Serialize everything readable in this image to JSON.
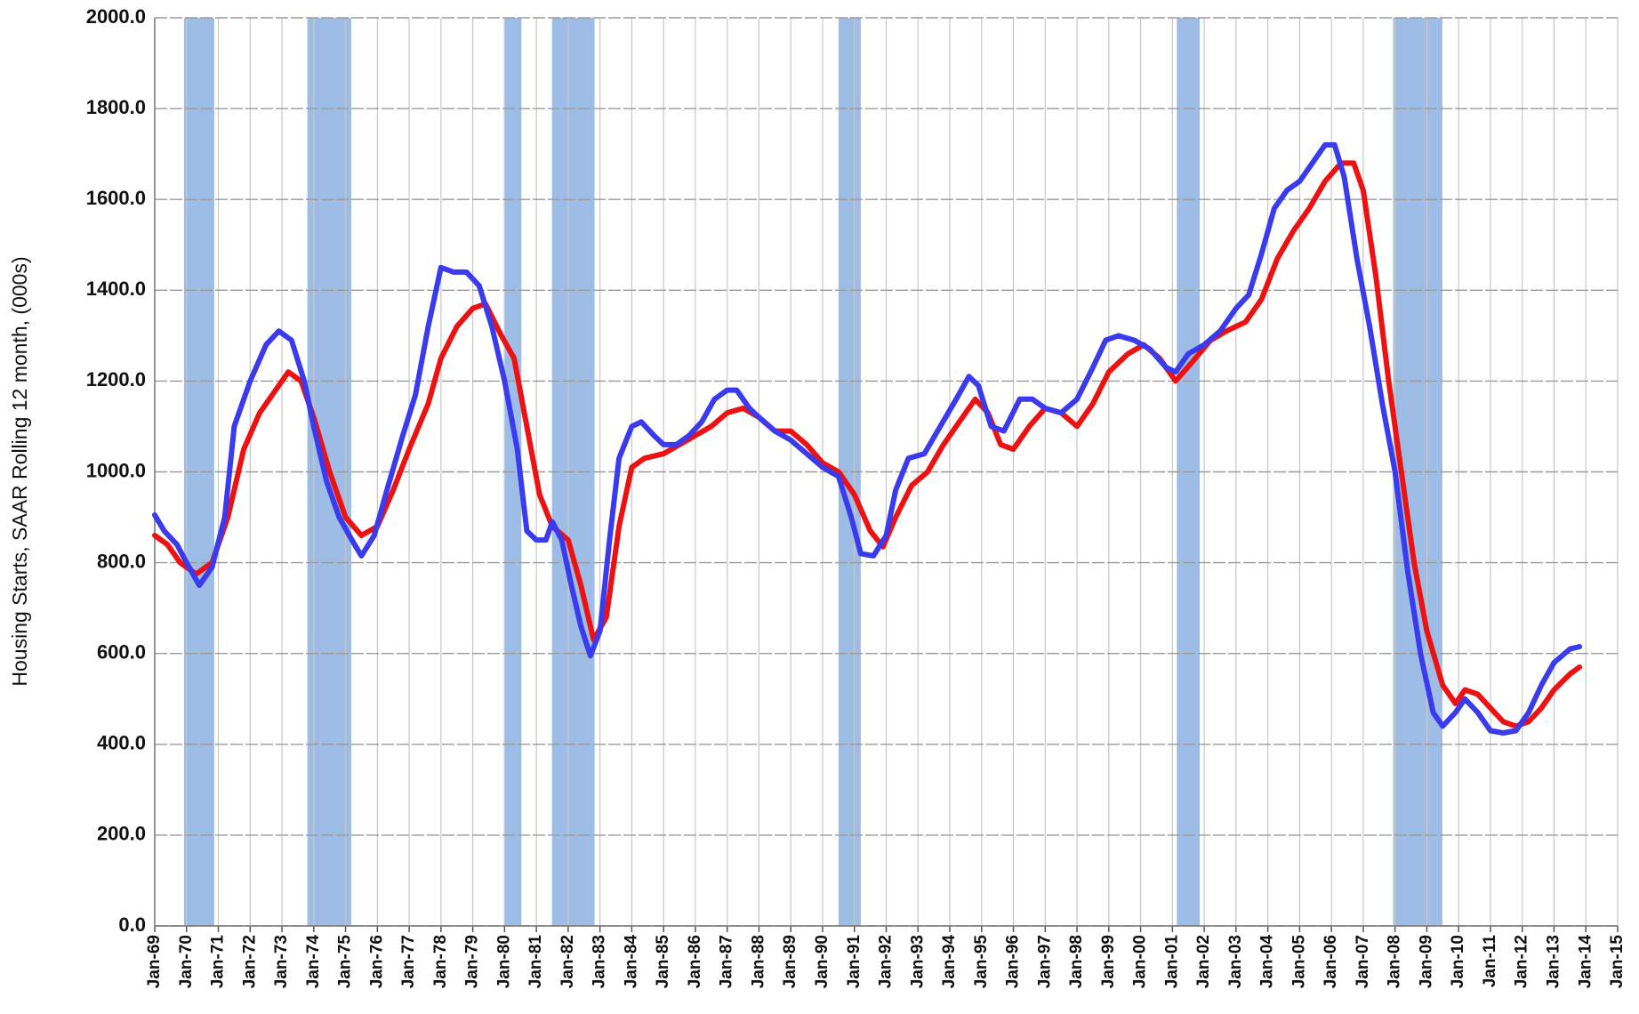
{
  "chart_data": {
    "type": "line",
    "y_label": "Housing Starts, SAAR Rolling 12 month, (000s)",
    "xlim": [
      1969,
      2015
    ],
    "xticks": [
      {
        "value": 1969,
        "label": "Jan-69"
      },
      {
        "value": 1970,
        "label": "Jan-70"
      },
      {
        "value": 1971,
        "label": "Jan-71"
      },
      {
        "value": 1972,
        "label": "Jan-72"
      },
      {
        "value": 1973,
        "label": "Jan-73"
      },
      {
        "value": 1974,
        "label": "Jan-74"
      },
      {
        "value": 1975,
        "label": "Jan-75"
      },
      {
        "value": 1976,
        "label": "Jan-76"
      },
      {
        "value": 1977,
        "label": "Jan-77"
      },
      {
        "value": 1978,
        "label": "Jan-78"
      },
      {
        "value": 1979,
        "label": "Jan-79"
      },
      {
        "value": 1980,
        "label": "Jan-80"
      },
      {
        "value": 1981,
        "label": "Jan-81"
      },
      {
        "value": 1982,
        "label": "Jan-82"
      },
      {
        "value": 1983,
        "label": "Jan-83"
      },
      {
        "value": 1984,
        "label": "Jan-84"
      },
      {
        "value": 1985,
        "label": "Jan-85"
      },
      {
        "value": 1986,
        "label": "Jan-86"
      },
      {
        "value": 1987,
        "label": "Jan-87"
      },
      {
        "value": 1988,
        "label": "Jan-88"
      },
      {
        "value": 1989,
        "label": "Jan-89"
      },
      {
        "value": 1990,
        "label": "Jan-90"
      },
      {
        "value": 1991,
        "label": "Jan-91"
      },
      {
        "value": 1992,
        "label": "Jan-92"
      },
      {
        "value": 1993,
        "label": "Jan-93"
      },
      {
        "value": 1994,
        "label": "Jan-94"
      },
      {
        "value": 1995,
        "label": "Jan-95"
      },
      {
        "value": 1996,
        "label": "Jan-96"
      },
      {
        "value": 1997,
        "label": "Jan-97"
      },
      {
        "value": 1998,
        "label": "Jan-98"
      },
      {
        "value": 1999,
        "label": "Jan-99"
      },
      {
        "value": 2000,
        "label": "Jan-00"
      },
      {
        "value": 2001,
        "label": "Jan-01"
      },
      {
        "value": 2002,
        "label": "Jan-02"
      },
      {
        "value": 2003,
        "label": "Jan-03"
      },
      {
        "value": 2004,
        "label": "Jan-04"
      },
      {
        "value": 2005,
        "label": "Jan-05"
      },
      {
        "value": 2006,
        "label": "Jan-06"
      },
      {
        "value": 2007,
        "label": "Jan-07"
      },
      {
        "value": 2008,
        "label": "Jan-08"
      },
      {
        "value": 2009,
        "label": "Jan-09"
      },
      {
        "value": 2010,
        "label": "Jan-10"
      },
      {
        "value": 2011,
        "label": "Jan-11"
      },
      {
        "value": 2012,
        "label": "Jan-12"
      },
      {
        "value": 2013,
        "label": "Jan-13"
      },
      {
        "value": 2014,
        "label": "Jan-14"
      },
      {
        "value": 2015,
        "label": "Jan-15"
      }
    ],
    "ylim": [
      0,
      2000
    ],
    "yticks": [
      {
        "value": 0,
        "label": "0.0"
      },
      {
        "value": 200,
        "label": "200.0"
      },
      {
        "value": 400,
        "label": "400.0"
      },
      {
        "value": 600,
        "label": "600.0"
      },
      {
        "value": 800,
        "label": "800.0"
      },
      {
        "value": 1000,
        "label": "1000.0"
      },
      {
        "value": 1200,
        "label": "1200.0"
      },
      {
        "value": 1400,
        "label": "1400.0"
      },
      {
        "value": 1600,
        "label": "1600.0"
      },
      {
        "value": 1800,
        "label": "1800.0"
      },
      {
        "value": 2000,
        "label": "2000.0"
      }
    ],
    "grid": true,
    "band_color": "#9dbde6",
    "recession_bands": [
      [
        1969.92,
        1970.87
      ],
      [
        1973.8,
        1975.18
      ],
      [
        1979.98,
        1980.53
      ],
      [
        1981.49,
        1982.83
      ],
      [
        1990.5,
        1991.2
      ],
      [
        2001.14,
        2001.86
      ],
      [
        2007.94,
        2009.49
      ]
    ],
    "series": [
      {
        "color": "#ee1111",
        "x": [
          1969.0,
          1969.4,
          1969.8,
          1970.3,
          1970.8,
          1971.3,
          1971.8,
          1972.3,
          1972.8,
          1973.2,
          1973.6,
          1974.0,
          1974.5,
          1975.0,
          1975.5,
          1976.0,
          1976.5,
          1977.0,
          1977.6,
          1978.0,
          1978.5,
          1979.0,
          1979.4,
          1979.9,
          1980.3,
          1980.7,
          1981.1,
          1981.5,
          1982.0,
          1982.4,
          1982.8,
          1983.2,
          1983.6,
          1984.0,
          1984.4,
          1985.0,
          1985.5,
          1986.0,
          1986.5,
          1987.0,
          1987.5,
          1988.0,
          1988.5,
          1989.0,
          1989.5,
          1990.0,
          1990.5,
          1991.0,
          1991.5,
          1991.9,
          1992.3,
          1992.8,
          1993.3,
          1993.8,
          1994.3,
          1994.8,
          1995.2,
          1995.6,
          1996.0,
          1996.5,
          1997.0,
          1997.5,
          1998.0,
          1998.5,
          1999.0,
          1999.6,
          2000.1,
          2000.6,
          2001.1,
          2001.6,
          2002.2,
          2002.7,
          2003.3,
          2003.8,
          2004.3,
          2004.8,
          2005.3,
          2005.8,
          2006.3,
          2006.7,
          2007.0,
          2007.4,
          2007.8,
          2008.2,
          2008.6,
          2009.0,
          2009.5,
          2009.9,
          2010.2,
          2010.6,
          2011.0,
          2011.4,
          2011.8,
          2012.2,
          2012.6,
          2013.0,
          2013.5,
          2013.8
        ],
        "values": [
          860,
          840,
          800,
          775,
          800,
          900,
          1050,
          1130,
          1180,
          1220,
          1200,
          1120,
          1000,
          900,
          860,
          880,
          960,
          1050,
          1150,
          1250,
          1320,
          1360,
          1370,
          1300,
          1250,
          1100,
          950,
          880,
          850,
          750,
          630,
          680,
          880,
          1010,
          1030,
          1040,
          1060,
          1080,
          1100,
          1130,
          1140,
          1120,
          1090,
          1090,
          1060,
          1020,
          1000,
          950,
          870,
          835,
          900,
          970,
          1000,
          1060,
          1110,
          1160,
          1130,
          1060,
          1050,
          1100,
          1140,
          1130,
          1100,
          1150,
          1220,
          1260,
          1280,
          1250,
          1200,
          1240,
          1290,
          1310,
          1330,
          1380,
          1470,
          1530,
          1580,
          1640,
          1680,
          1680,
          1620,
          1430,
          1200,
          1000,
          800,
          650,
          530,
          490,
          520,
          510,
          480,
          450,
          440,
          450,
          480,
          520,
          555,
          570
        ]
      },
      {
        "color": "#3a3aee",
        "x": [
          1969.0,
          1969.3,
          1969.7,
          1970.0,
          1970.4,
          1970.8,
          1971.2,
          1971.5,
          1972.0,
          1972.5,
          1972.9,
          1973.3,
          1973.7,
          1974.0,
          1974.4,
          1974.8,
          1975.2,
          1975.5,
          1975.9,
          1976.3,
          1976.8,
          1977.2,
          1977.6,
          1978.0,
          1978.4,
          1978.8,
          1979.2,
          1979.6,
          1980.0,
          1980.4,
          1980.7,
          1981.0,
          1981.3,
          1981.5,
          1981.8,
          1982.1,
          1982.4,
          1982.7,
          1983.0,
          1983.3,
          1983.6,
          1984.0,
          1984.3,
          1984.7,
          1985.0,
          1985.4,
          1985.8,
          1986.2,
          1986.6,
          1987.0,
          1987.3,
          1987.7,
          1988.0,
          1988.5,
          1989.0,
          1989.5,
          1990.0,
          1990.5,
          1990.9,
          1991.2,
          1991.6,
          1992.0,
          1992.3,
          1992.7,
          1993.2,
          1993.7,
          1994.2,
          1994.6,
          1994.9,
          1995.3,
          1995.7,
          1996.2,
          1996.6,
          1997.0,
          1997.5,
          1998.0,
          1998.5,
          1998.9,
          1999.3,
          1999.8,
          2000.3,
          2000.8,
          2001.1,
          2001.5,
          2002.0,
          2002.5,
          2003.0,
          2003.4,
          2003.8,
          2004.2,
          2004.6,
          2005.0,
          2005.4,
          2005.8,
          2006.1,
          2006.4,
          2006.8,
          2007.2,
          2007.6,
          2008.0,
          2008.4,
          2008.8,
          2009.2,
          2009.5,
          2009.9,
          2010.2,
          2010.6,
          2011.0,
          2011.4,
          2011.8,
          2012.2,
          2012.6,
          2013.0,
          2013.5,
          2013.8
        ],
        "values": [
          905,
          870,
          840,
          800,
          750,
          790,
          900,
          1100,
          1200,
          1280,
          1310,
          1290,
          1200,
          1100,
          980,
          900,
          850,
          815,
          860,
          960,
          1080,
          1170,
          1320,
          1450,
          1440,
          1440,
          1410,
          1320,
          1200,
          1050,
          870,
          850,
          850,
          890,
          850,
          750,
          660,
          595,
          650,
          850,
          1030,
          1100,
          1110,
          1080,
          1060,
          1060,
          1080,
          1110,
          1160,
          1180,
          1180,
          1140,
          1120,
          1090,
          1070,
          1040,
          1010,
          990,
          900,
          820,
          815,
          860,
          960,
          1030,
          1040,
          1100,
          1160,
          1210,
          1190,
          1100,
          1090,
          1160,
          1160,
          1140,
          1130,
          1160,
          1230,
          1290,
          1300,
          1290,
          1270,
          1230,
          1220,
          1260,
          1280,
          1310,
          1360,
          1390,
          1480,
          1580,
          1620,
          1640,
          1680,
          1720,
          1720,
          1650,
          1470,
          1320,
          1150,
          1000,
          780,
          600,
          470,
          440,
          470,
          500,
          470,
          430,
          425,
          430,
          470,
          530,
          580,
          610,
          615
        ]
      }
    ]
  }
}
